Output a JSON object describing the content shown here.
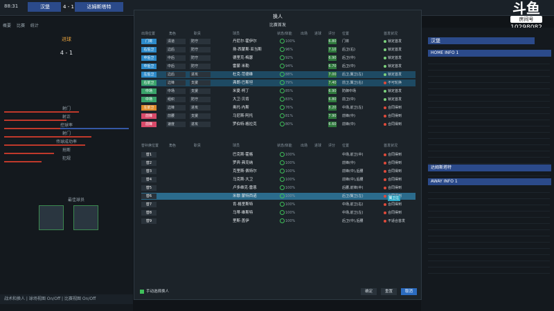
{
  "topbar": {
    "time": "88:31",
    "home": "汉堡",
    "score": "4 - 1",
    "away": "达姆斯塔特"
  },
  "brand": {
    "logo": "斗鱼",
    "room_label": "房间号",
    "room_number": "10298082"
  },
  "left": {
    "tabs": [
      "概要",
      "比赛",
      "统计"
    ],
    "summary_title": "进球",
    "score": "4 - 1",
    "stats_labels": [
      "射门",
      "射正",
      "控球率",
      "射门",
      "传球成功率",
      "抢断",
      "犯规"
    ],
    "best_player_label": "最佳球员",
    "bottom": "战术和换人  |  球场视图 On/Off  |  比赛视图 On/Off"
  },
  "modal": {
    "title": "换人",
    "subtitle": "比赛首发",
    "headers": [
      "出场位置",
      "角色",
      "职责",
      "球员",
      "状态/体能",
      "出场",
      "进球",
      "评分",
      "位置",
      "首发状况"
    ],
    "starters": [
      {
        "pos": "门将",
        "role": "清道",
        "duty": "防守",
        "name": "丹尼尔·霍伊尔",
        "pct": "100%",
        "rating": "6.80",
        "position": "门将",
        "status": "锁定首发",
        "pc": "#2d8ac9",
        "sc": "#7cd17c"
      },
      {
        "pos": "右后卫",
        "role": "边后",
        "duty": "防守",
        "name": "扬·西蒙斯·亚当斯",
        "pct": "96%",
        "rating": "7.10",
        "position": "后卫(右)",
        "status": "锁定首发",
        "pc": "#2d8ac9",
        "sc": "#7cd17c"
      },
      {
        "pos": "中后卫",
        "role": "中后",
        "duty": "防守",
        "name": "德里克·梅瑟",
        "pct": "92%",
        "rating": "6.90",
        "position": "后卫(中)",
        "status": "锁定首发",
        "pc": "#2d8ac9",
        "sc": "#7cd17c"
      },
      {
        "pos": "中后卫",
        "role": "中后",
        "duty": "防守",
        "name": "雷蒙·米勒",
        "pct": "94%",
        "rating": "6.70",
        "position": "后卫(中)",
        "status": "锁定首发",
        "pc": "#2d8ac9",
        "sc": "#7cd17c"
      },
      {
        "pos": "左后卫",
        "role": "边后",
        "duty": "进攻",
        "name": "杜克·范德维",
        "pct": "88%",
        "rating": "7.00",
        "position": "后卫,翼卫(左)",
        "status": "锁定首发",
        "pc": "#2d8ac9",
        "sc": "#7cd17c"
      },
      {
        "pos": "右前卫",
        "role": "边锋",
        "duty": "支援",
        "name": "弗朗·巴斯坦",
        "pct": "79%",
        "rating": "7.40",
        "position": "前卫,翼卫(右)",
        "status": "不可轮换",
        "pc": "#3aa36a",
        "sc": "#e04a3a"
      },
      {
        "pos": "中场",
        "role": "中场",
        "duty": "支援",
        "name": "米夏·柯丁",
        "pct": "85%",
        "rating": "6.90",
        "position": "防御中场",
        "status": "锁定首发",
        "pc": "#3aa36a",
        "sc": "#7cd17c"
      },
      {
        "pos": "中场",
        "role": "组织",
        "duty": "防守",
        "name": "大卫·贝肯",
        "pct": "83%",
        "rating": "6.80",
        "position": "前卫(中)",
        "status": "锁定首发",
        "pc": "#3aa36a",
        "sc": "#7cd17c"
      },
      {
        "pos": "左前卫",
        "role": "边锋",
        "duty": "进攻",
        "name": "奥托·内斯",
        "pct": "76%",
        "rating": "8.20",
        "position": "中场,前卫(左)",
        "status": "合同得到",
        "pc": "#e08a2a",
        "sc": "#e04a3a"
      },
      {
        "pos": "前锋",
        "role": "前腰",
        "duty": "支援",
        "name": "马尼斯·阿托",
        "pct": "81%",
        "rating": "7.90",
        "position": "前锋(中)",
        "status": "合同得到",
        "pc": "#d94a6a",
        "sc": "#e04a3a"
      },
      {
        "pos": "前锋",
        "role": "速度",
        "duty": "进攻",
        "name": "罗伯特·格拉克",
        "pct": "80%",
        "rating": "6.60",
        "position": "前锋(中)",
        "status": "合同得到",
        "pc": "#d94a6a",
        "sc": "#e04a3a"
      }
    ],
    "subs_headers": [
      "替补席位置",
      "角色",
      "职责",
      "球员",
      "状态/体能",
      "出场",
      "进球",
      "评分",
      "位置",
      "首发状况"
    ],
    "subs": [
      {
        "pos": "替1",
        "name": "巴克斯·霍格",
        "pct": "100%",
        "position": "中场,前卫(中)",
        "status": "合同得到"
      },
      {
        "pos": "替2",
        "name": "罗宾·弗克纳",
        "pct": "100%",
        "position": "前锋(中)",
        "status": "合同得到"
      },
      {
        "pos": "替3",
        "name": "克里斯·佩特尔",
        "pct": "100%",
        "position": "前锋(中),后腰",
        "status": "合同得到"
      },
      {
        "pos": "替4",
        "name": "马克斯·大卫",
        "pct": "100%",
        "position": "前锋(中),后腰",
        "status": "合同得到"
      },
      {
        "pos": "替5",
        "name": "卢多维克·雷恩",
        "pct": "100%",
        "position": "后腰,前锋(中)",
        "status": "合同得到"
      },
      {
        "pos": "替6",
        "name": "米歇·蒙特西诺",
        "pct": "100%",
        "position": "后卫/翼卫(左)",
        "status": "合同得到"
      },
      {
        "pos": "替7",
        "name": "肯·格里斯特",
        "pct": "100%",
        "position": "中场,前卫(右)",
        "status": "合同得到"
      },
      {
        "pos": "替8",
        "name": "马蒂·维斯特",
        "pct": "100%",
        "position": "中场,前卫(左)",
        "status": "合同得到"
      },
      {
        "pos": "替9",
        "name": "里斯·盖伊",
        "pct": "100%",
        "position": "后卫(中),后腰",
        "status": "不适合首发"
      }
    ],
    "tooltip": "翼卫左",
    "check_label": "手动选择换人",
    "buttons": {
      "confirm": "确定",
      "reset": "重置",
      "cancel": "取消"
    }
  },
  "right": {
    "team1": "汉堡",
    "home_info": "HOME INFO 1",
    "team2": "达姆斯塔特",
    "away_info": "AWAY INFO 1"
  }
}
